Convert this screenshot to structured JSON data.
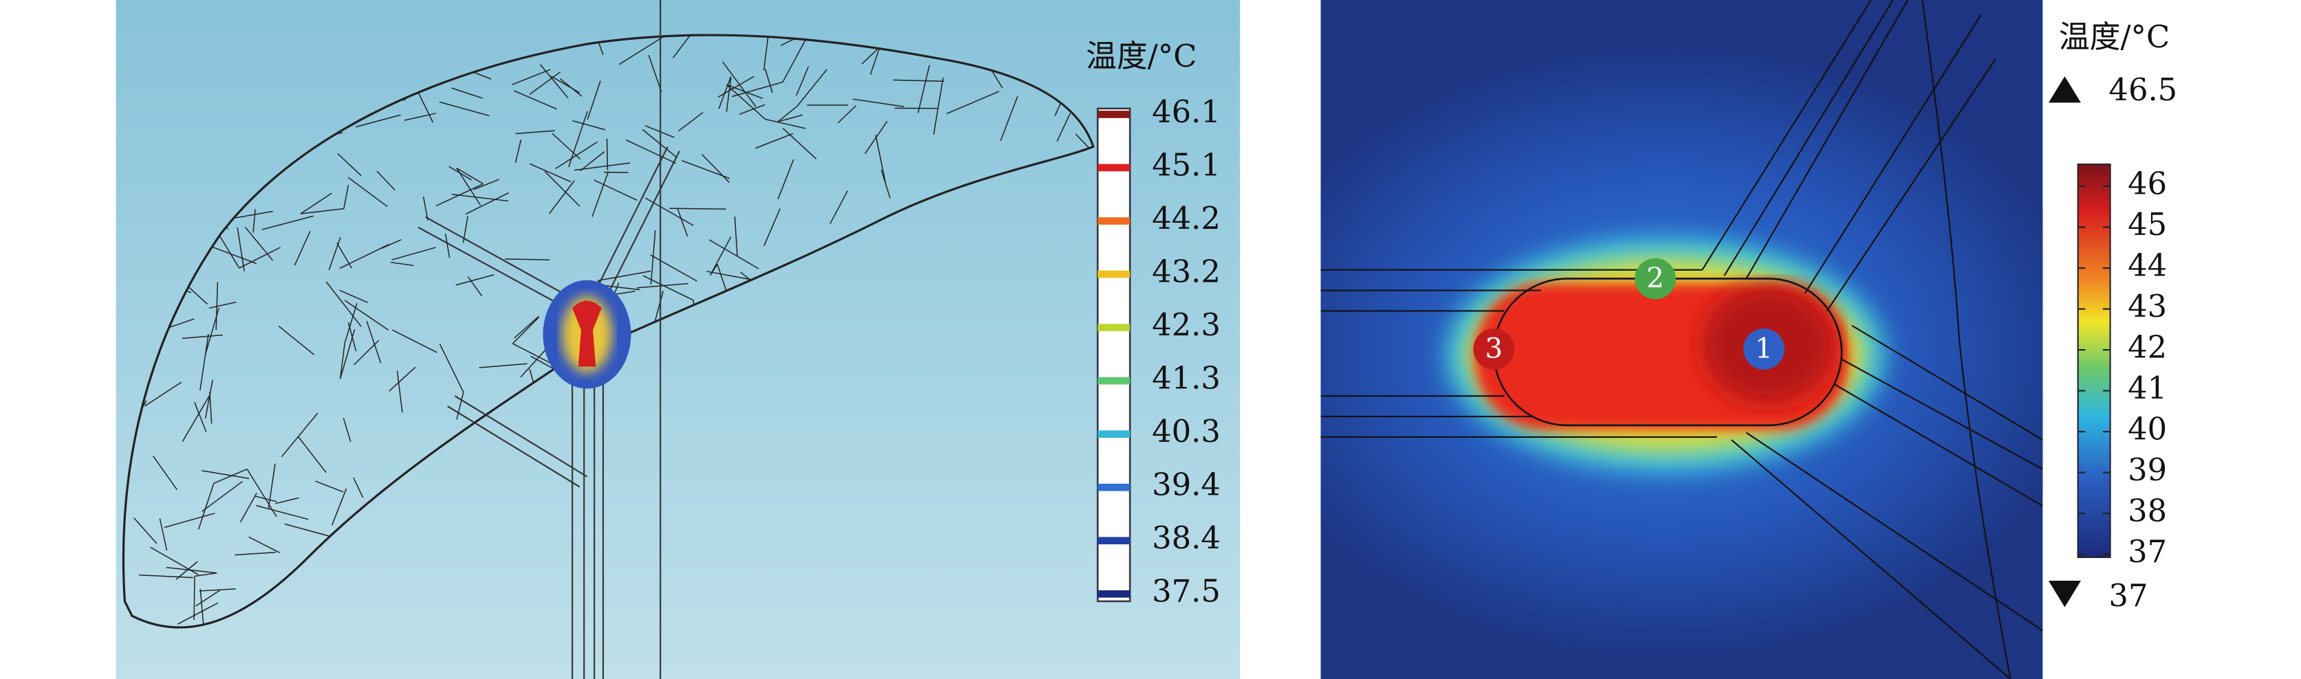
{
  "left_panel": {
    "legend": {
      "title": "温度/°C",
      "ticks": [
        46.1,
        45.1,
        44.2,
        43.2,
        42.3,
        41.3,
        40.3,
        39.4,
        38.4,
        37.5
      ]
    }
  },
  "right_panel": {
    "legend": {
      "title": "温度/°C",
      "max": 46.5,
      "min": 37,
      "ticks": [
        46,
        45,
        44,
        43,
        42,
        41,
        40,
        39,
        38,
        37
      ]
    },
    "markers": [
      "1",
      "2",
      "3"
    ]
  }
}
